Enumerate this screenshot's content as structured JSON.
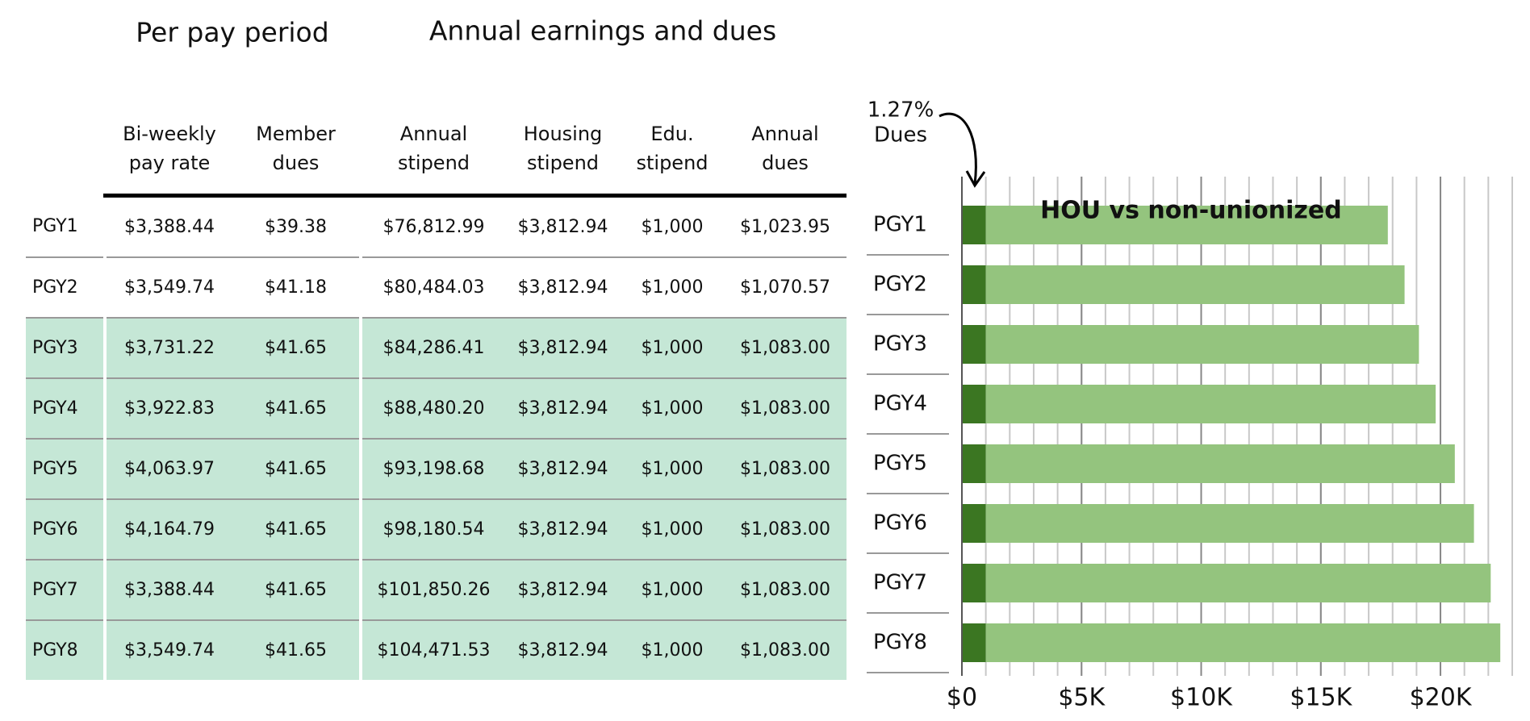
{
  "table": {
    "group_headers": [
      "Per pay period",
      "Annual earnings and dues"
    ],
    "columns": [
      "Bi-weekly pay rate",
      "Member dues",
      "Annual stipend",
      "Housing stipend",
      "Edu. stipend",
      "Annual dues"
    ],
    "rows": [
      [
        "PGY1",
        "$3,388.44",
        "$39.38",
        "$76,812.99",
        "$3,812.94",
        "$1,000",
        "$1,023.95"
      ],
      [
        "PGY2",
        "$3,549.74",
        "$41.18",
        "$80,484.03",
        "$3,812.94",
        "$1,000",
        "$1,070.57"
      ],
      [
        "PGY3",
        "$3,731.22",
        "$41.65",
        "$84,286.41",
        "$3,812.94",
        "$1,000",
        "$1,083.00"
      ],
      [
        "PGY4",
        "$3,922.83",
        "$41.65",
        "$88,480.20",
        "$3,812.94",
        "$1,000",
        "$1,083.00"
      ],
      [
        "PGY5",
        "$4,063.97",
        "$41.65",
        "$93,198.68",
        "$3,812.94",
        "$1,000",
        "$1,083.00"
      ],
      [
        "PGY6",
        "$4,164.79",
        "$41.65",
        "$98,180.54",
        "$3,812.94",
        "$1,000",
        "$1,083.00"
      ],
      [
        "PGY7",
        "$3,388.44",
        "$41.65",
        "$101,850.26",
        "$3,812.94",
        "$1,000",
        "$1,083.00"
      ],
      [
        "PGY8",
        "$3,549.74",
        "$41.65",
        "$104,471.53",
        "$3,812.94",
        "$1,000",
        "$1,083.00"
      ]
    ],
    "highlight_rows": [
      2,
      3,
      4,
      5,
      6,
      7
    ],
    "highlight_color": "#c5e7d6"
  },
  "chart_data": {
    "type": "bar",
    "orientation": "horizontal",
    "stacked": true,
    "annotation": [
      "1.27%",
      "Dues"
    ],
    "categories": [
      "PGY1",
      "PGY2",
      "PGY3",
      "PGY4",
      "PGY5",
      "PGY6",
      "PGY7",
      "PGY8"
    ],
    "series": [
      {
        "color": "#3b7622",
        "values": [
          1000,
          1000,
          1000,
          1000,
          1000,
          1000,
          1000,
          1000
        ]
      },
      {
        "name": "HOU vs non-unionized",
        "color": "#94c47e",
        "values": [
          16800,
          17500,
          18100,
          18800,
          19600,
          20400,
          21100,
          21500
        ]
      }
    ],
    "xlim": [
      0,
      23000
    ],
    "xticks": [
      {
        "value": 0,
        "label": "$0"
      },
      {
        "value": 5000,
        "label": "$5K"
      },
      {
        "value": 10000,
        "label": "$10K"
      },
      {
        "value": 15000,
        "label": "$15K"
      },
      {
        "value": 20000,
        "label": "$20K"
      }
    ],
    "grid_lines": [
      1000,
      2000,
      3000,
      4000,
      5000,
      6000,
      7000,
      8000,
      9000,
      10000,
      11000,
      12000,
      13000,
      14000,
      15000,
      16000,
      17000,
      18000,
      19000,
      20000,
      21000,
      22000,
      23000
    ],
    "grid": true
  }
}
